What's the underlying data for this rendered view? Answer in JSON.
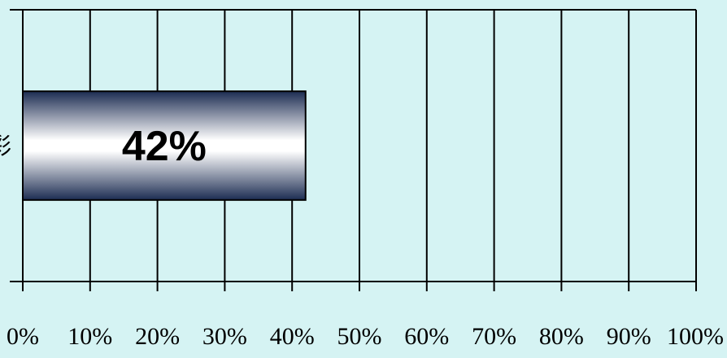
{
  "colors": {
    "background": "#d5f3f3",
    "bar_dark": "#1c2c52",
    "bar_light": "#ffffff",
    "grid": "#000000"
  },
  "chart_data": {
    "type": "bar",
    "orientation": "horizontal",
    "categories": [
      "彩"
    ],
    "values": [
      42
    ],
    "data_labels": [
      "42%"
    ],
    "xlim": [
      0,
      100
    ],
    "x_ticks": [
      0,
      10,
      20,
      30,
      40,
      50,
      60,
      70,
      80,
      90,
      100
    ],
    "x_tick_labels": [
      "0%",
      "10%",
      "20%",
      "30%",
      "40%",
      "50%",
      "60%",
      "70%",
      "80%",
      "90%",
      "100%"
    ],
    "grid": true,
    "title": "",
    "xlabel": "",
    "ylabel": ""
  }
}
